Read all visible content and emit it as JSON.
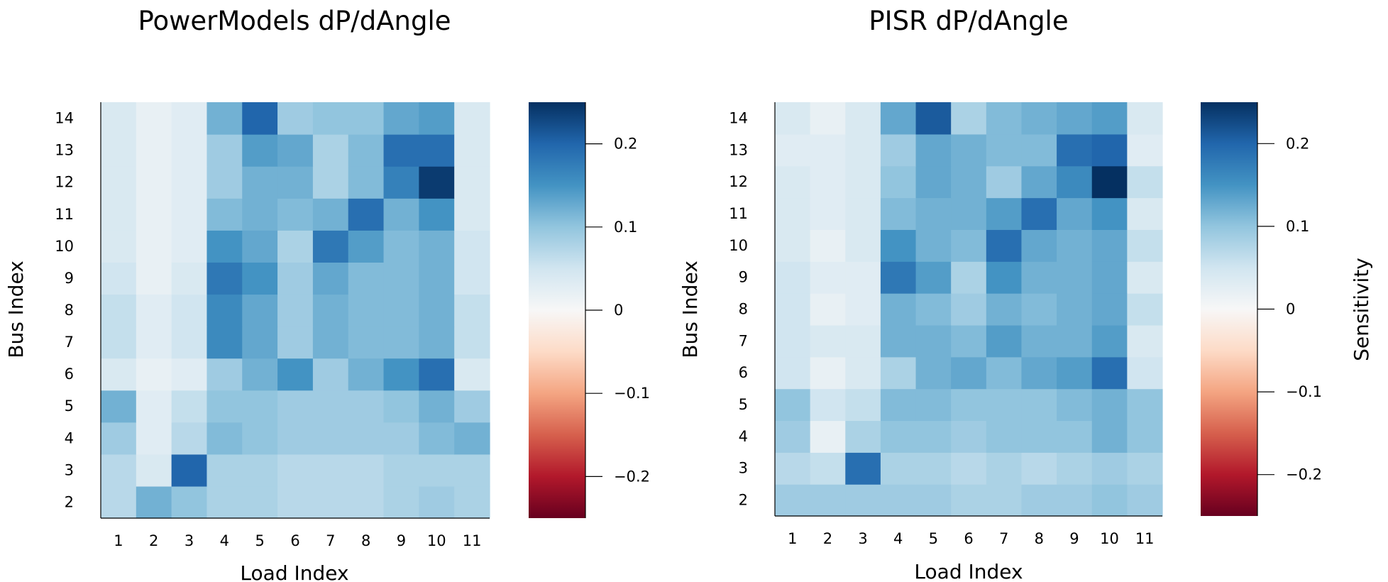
{
  "chart_data": [
    {
      "type": "heatmap",
      "title": "PowerModels dP/dAngle",
      "xlabel": "Load Index",
      "ylabel": "Bus Index",
      "x_categories": [
        "1",
        "2",
        "3",
        "4",
        "5",
        "6",
        "7",
        "8",
        "9",
        "10",
        "11"
      ],
      "y_categories": [
        "2",
        "3",
        "4",
        "5",
        "6",
        "7",
        "8",
        "9",
        "10",
        "11",
        "12",
        "13",
        "14"
      ],
      "values": [
        [
          0.07,
          0.12,
          0.1,
          0.08,
          0.08,
          0.07,
          0.07,
          0.07,
          0.08,
          0.09,
          0.08
        ],
        [
          0.07,
          0.04,
          0.2,
          0.08,
          0.08,
          0.07,
          0.07,
          0.07,
          0.08,
          0.08,
          0.08
        ],
        [
          0.09,
          0.03,
          0.07,
          0.11,
          0.1,
          0.09,
          0.09,
          0.09,
          0.09,
          0.11,
          0.12
        ],
        [
          0.12,
          0.03,
          0.06,
          0.1,
          0.1,
          0.09,
          0.09,
          0.09,
          0.1,
          0.12,
          0.09
        ],
        [
          0.04,
          0.02,
          0.03,
          0.09,
          0.12,
          0.15,
          0.09,
          0.12,
          0.15,
          0.19,
          0.04
        ],
        [
          0.06,
          0.03,
          0.05,
          0.16,
          0.13,
          0.09,
          0.12,
          0.11,
          0.11,
          0.12,
          0.06
        ],
        [
          0.06,
          0.03,
          0.05,
          0.16,
          0.13,
          0.09,
          0.12,
          0.11,
          0.11,
          0.12,
          0.06
        ],
        [
          0.05,
          0.02,
          0.04,
          0.18,
          0.15,
          0.09,
          0.13,
          0.11,
          0.11,
          0.12,
          0.05
        ],
        [
          0.04,
          0.02,
          0.03,
          0.15,
          0.13,
          0.08,
          0.18,
          0.14,
          0.11,
          0.12,
          0.05
        ],
        [
          0.04,
          0.02,
          0.03,
          0.11,
          0.12,
          0.11,
          0.12,
          0.19,
          0.12,
          0.15,
          0.04
        ],
        [
          0.04,
          0.02,
          0.03,
          0.09,
          0.12,
          0.12,
          0.08,
          0.11,
          0.17,
          0.24,
          0.04
        ],
        [
          0.04,
          0.02,
          0.03,
          0.09,
          0.14,
          0.13,
          0.08,
          0.11,
          0.19,
          0.19,
          0.04
        ],
        [
          0.04,
          0.02,
          0.03,
          0.12,
          0.2,
          0.09,
          0.1,
          0.1,
          0.13,
          0.14,
          0.04
        ]
      ],
      "colorbar": {
        "range": [
          -0.25,
          0.25
        ],
        "ticks": [
          -0.2,
          -0.1,
          0,
          0.1,
          0.2
        ],
        "tick_labels": [
          "−0.2",
          "−0.1",
          "0",
          "0.1",
          "0.2"
        ],
        "label": ""
      },
      "colormap": [
        "#67001f",
        "#b2182b",
        "#d6604d",
        "#f4a582",
        "#fddbc7",
        "#f7f7f7",
        "#d1e5f0",
        "#92c5de",
        "#4393c3",
        "#2166ac",
        "#053061"
      ]
    },
    {
      "type": "heatmap",
      "title": "PISR dP/dAngle",
      "xlabel": "Load Index",
      "ylabel": "Bus Index",
      "x_categories": [
        "1",
        "2",
        "3",
        "4",
        "5",
        "6",
        "7",
        "8",
        "9",
        "10",
        "11"
      ],
      "y_categories": [
        "2",
        "3",
        "4",
        "5",
        "6",
        "7",
        "8",
        "9",
        "10",
        "11",
        "12",
        "13",
        "14"
      ],
      "values": [
        [
          0.09,
          0.09,
          0.09,
          0.09,
          0.09,
          0.08,
          0.08,
          0.09,
          0.09,
          0.1,
          0.09
        ],
        [
          0.07,
          0.06,
          0.19,
          0.08,
          0.08,
          0.07,
          0.08,
          0.07,
          0.08,
          0.09,
          0.08
        ],
        [
          0.09,
          0.02,
          0.08,
          0.1,
          0.1,
          0.09,
          0.1,
          0.1,
          0.1,
          0.12,
          0.1
        ],
        [
          0.1,
          0.05,
          0.06,
          0.11,
          0.11,
          0.1,
          0.1,
          0.1,
          0.11,
          0.12,
          0.1
        ],
        [
          0.05,
          0.02,
          0.04,
          0.08,
          0.12,
          0.13,
          0.11,
          0.13,
          0.14,
          0.19,
          0.05
        ],
        [
          0.05,
          0.04,
          0.04,
          0.12,
          0.12,
          0.11,
          0.14,
          0.12,
          0.12,
          0.14,
          0.04
        ],
        [
          0.05,
          0.02,
          0.03,
          0.12,
          0.11,
          0.09,
          0.12,
          0.11,
          0.12,
          0.13,
          0.06
        ],
        [
          0.05,
          0.03,
          0.03,
          0.18,
          0.14,
          0.08,
          0.15,
          0.12,
          0.12,
          0.13,
          0.04
        ],
        [
          0.04,
          0.02,
          0.04,
          0.15,
          0.12,
          0.11,
          0.19,
          0.13,
          0.12,
          0.13,
          0.06
        ],
        [
          0.04,
          0.03,
          0.04,
          0.11,
          0.12,
          0.12,
          0.14,
          0.19,
          0.13,
          0.15,
          0.04
        ],
        [
          0.04,
          0.03,
          0.04,
          0.1,
          0.13,
          0.12,
          0.09,
          0.13,
          0.16,
          0.26,
          0.06
        ],
        [
          0.03,
          0.03,
          0.04,
          0.09,
          0.13,
          0.12,
          0.11,
          0.11,
          0.19,
          0.2,
          0.03
        ],
        [
          0.04,
          0.02,
          0.04,
          0.13,
          0.21,
          0.08,
          0.11,
          0.12,
          0.13,
          0.14,
          0.04
        ]
      ],
      "colorbar": {
        "range": [
          -0.25,
          0.25
        ],
        "ticks": [
          -0.2,
          -0.1,
          0,
          0.1,
          0.2
        ],
        "tick_labels": [
          "−0.2",
          "−0.1",
          "0",
          "0.1",
          "0.2"
        ],
        "label": "Sensitivity"
      },
      "colormap": [
        "#67001f",
        "#b2182b",
        "#d6604d",
        "#f4a582",
        "#fddbc7",
        "#f7f7f7",
        "#d1e5f0",
        "#92c5de",
        "#4393c3",
        "#2166ac",
        "#053061"
      ]
    }
  ]
}
